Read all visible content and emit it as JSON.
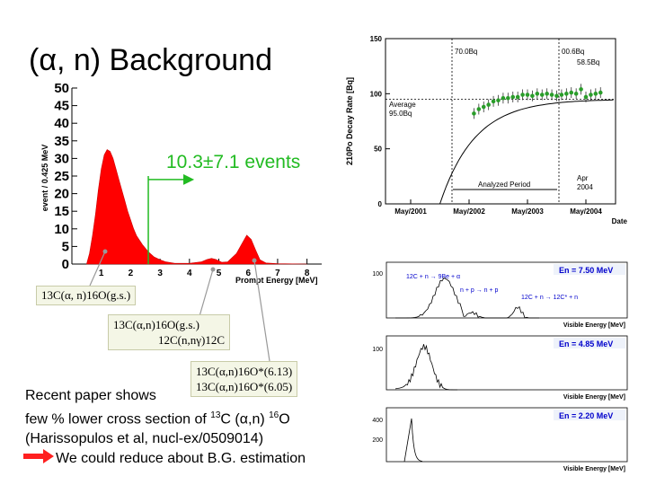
{
  "title": "(α, n) Background",
  "main_chart": {
    "annotation": "10.3±7.1 events",
    "xlabel": "Prompt Energy [MeV]",
    "ylabel": "event / 0.425 MeV",
    "y_ticks": [
      "0",
      "5",
      "10",
      "15",
      "20",
      "25",
      "30",
      "35",
      "40",
      "45",
      "50"
    ],
    "x_ticks": [
      "1",
      "2",
      "3",
      "4",
      "5",
      "6",
      "7",
      "8"
    ],
    "colors": {
      "fill": "#ff0000",
      "annotation": "#22bb22"
    }
  },
  "reaction_labels": {
    "r1": "13C(α, n)16O(g.s.)",
    "r2a": "13C(α,n)16O(g.s.)",
    "r2b": "12C(n,nγ)12C",
    "r3a": "13C(α,n)16O*(6.13)",
    "r3b": "13C(α,n)16O*(6.05)"
  },
  "text": {
    "line1": "Recent paper shows",
    "line2_pre": "few % lower cross section of ",
    "line2_sup1": "13",
    "line2_mid": "C (α,n) ",
    "line2_sup2": "16",
    "line2_post": "O",
    "line3": "(Harissopulos et al, nucl-ex/0509014)",
    "line4": "We could reduce about B.G. estimation"
  },
  "po_chart": {
    "ylabel": "210Po Decay Rate [Bq]",
    "xlabel": "Date",
    "y_ticks": [
      "0",
      "50",
      "100",
      "150"
    ],
    "x_ticks": [
      "May/2001",
      "May/2002",
      "May/2003",
      "May/2004"
    ],
    "ann_a": "70.0Bq",
    "ann_b": "00.6Bq",
    "ann_c": "58.5Bq",
    "ann_avg1": "Average",
    "ann_avg2": "95.0Bq",
    "ann_period": "Analyzed Period",
    "ann_apr1": "Apr",
    "ann_apr2": "2004"
  },
  "small_plots": [
    {
      "label": "En = 7.50 MeV",
      "xlabel": "Visible Energy [MeV]",
      "ytick": "100",
      "r1": "12C + n → 9Be + α",
      "r2": "n + p → n + p",
      "r3": "12C + n → 12C* + n"
    },
    {
      "label": "En = 4.85 MeV",
      "xlabel": "Visible Energy [MeV]",
      "ytick": "100"
    },
    {
      "label": "En = 2.20 MeV",
      "xlabel": "Visible Energy [MeV]",
      "ytick": "400",
      "ytick2": "200"
    }
  ],
  "chart_data": [
    {
      "type": "area",
      "xlabel": "Prompt Energy [MeV]",
      "ylabel": "event / 0.425 MeV",
      "xlim": [
        0,
        8.5
      ],
      "ylim": [
        0,
        50
      ],
      "x": [
        0.5,
        0.6,
        0.7,
        0.8,
        0.9,
        1.0,
        1.1,
        1.2,
        1.3,
        1.4,
        1.5,
        1.6,
        1.7,
        1.8,
        1.9,
        2.0,
        2.1,
        2.2,
        2.4,
        2.6,
        2.8,
        3.0,
        3.2,
        3.5,
        4.0,
        4.4,
        4.6,
        4.75,
        4.9,
        5.1,
        5.3,
        5.6,
        5.8,
        5.95,
        6.1,
        6.25,
        6.4,
        6.6,
        7.0,
        8.0
      ],
      "values": [
        0,
        3,
        8,
        14,
        21,
        27,
        31,
        32.5,
        32,
        30,
        27,
        24,
        21,
        18,
        15,
        12.5,
        10,
        8,
        5.5,
        3.5,
        2,
        1.2,
        0.6,
        0.2,
        0.2,
        0.6,
        1.3,
        1.6,
        1.3,
        0.5,
        0.6,
        3,
        6,
        8.2,
        7,
        4,
        1.2,
        0.3,
        0.1,
        0
      ]
    },
    {
      "type": "scatter",
      "xlabel": "Date",
      "ylabel": "210Po Decay Rate [Bq]",
      "ylim": [
        0,
        150
      ],
      "x": [
        "2002-06",
        "2002-07",
        "2002-08",
        "2002-09",
        "2002-10",
        "2002-11",
        "2002-12",
        "2003-01",
        "2003-02",
        "2003-03",
        "2003-04",
        "2003-05",
        "2003-06",
        "2003-07",
        "2003-08",
        "2003-09",
        "2003-10",
        "2003-11",
        "2003-12",
        "2004-01",
        "2004-02",
        "2004-03",
        "2004-04",
        "2004-05",
        "2004-06",
        "2004-07",
        "2004-08"
      ],
      "values": [
        82,
        86,
        88,
        90,
        93,
        94,
        96,
        96,
        97,
        97,
        99,
        99,
        98,
        100,
        99,
        100,
        99,
        98,
        99,
        100,
        101,
        100,
        104,
        97,
        99,
        100,
        101
      ]
    }
  ]
}
